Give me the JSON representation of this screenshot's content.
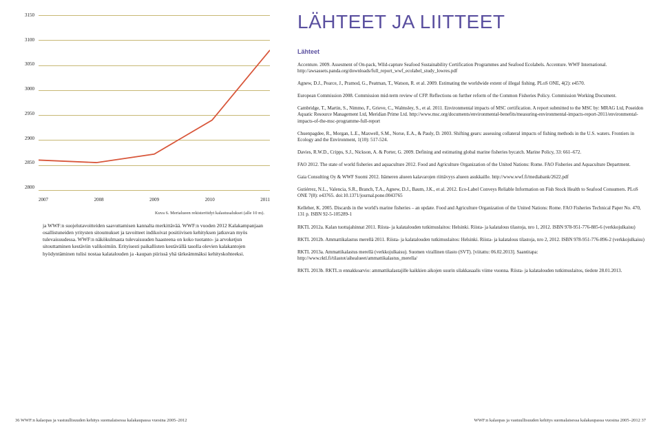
{
  "headline": "LÄHTEET JA LIITTEET",
  "subhead": "Lähteet",
  "chart": {
    "type": "line",
    "ylim": [
      2800,
      3150
    ],
    "ytick_step": 50,
    "yticks": [
      "3150",
      "3100",
      "3050",
      "3000",
      "2950",
      "2900",
      "2850",
      "2800"
    ],
    "xticks": [
      "2007",
      "2008",
      "2009",
      "2010",
      "2011"
    ],
    "values": [
      2860,
      2855,
      2872,
      2940,
      3080
    ],
    "line_color": "#d8563a",
    "line_width": 1.8,
    "grid_color": "#c7b773",
    "background_color": "#ffffff"
  },
  "caption": "Kuva 6. Merialueen rekisteröidyt kalastusalukset (alle 10 m).",
  "body_paragraph": "ja WWF:n suojelutavoitteiden saavuttamisen kannalta merkittävää. WWF:n vuoden 2012 Kalakampanjaan osallistuneiden yritysten sitoumukset ja tavoitteet indikoivat positiivisen kehityksen jatkuvan myös tulevaisuudessa. WWF:n näkökulmasta tulevaisuuden haasteena on koko tuotanto- ja arvoketjun sitouttaminen kestäviin valikoimiin. Erityisesti paikallisten kestävällä tasolla olevien kalakantojen hyödyntäminen tulisi nostaa kalatalouden ja -kaupan piirissä yhä tärkeämmäksi kehityskohteeksi.",
  "references": [
    "Accenture. 2009. Assesment of On-pack, Wild-capture Seafood Sustainability Certification Programmes and Seafood Ecolabels. Accenture. WWF International. http://awsassets.panda.org/downloads/full_report_wwf_ecolabel_study_lowres.pdf",
    "Agnew, D.J., Pearce, J., Pramod, G., Peatman, T., Watson, R. et al. 2009. Estimating the worldwide extent of illegal fishing. PLoS ONE, 4(2): e4570.",
    "European Commission 2008. Commission mid-term review of CFP. Reflections on further reform of the Common Fisheries Policy. Commission Working Document.",
    "Cambridge, T., Martin, S., Nimmo, F., Grieve, C., Walmsley, S., et al. 2011. Environmental impacts of MSC certification. A report submitted to the MSC by: MRAG Ltd, Poseidon Aquatic Resource Management Ltd, Meridian Prime Ltd. http://www.msc.org/documents/environmental-benefits/measuring-environmental-impacts-report-2011/environmental-impacts-of-the-msc-programme-full-report",
    "Chuenpagdee, R., Morgan, L.E., Maxwell, S.M., Norse, E.A., & Pauly, D. 2003. Shifting gears: assessing collateral impacts of fishing methods in the U.S. waters. Frontiers in Ecology and the Environment, 1(10): 517-524.",
    "Davies, R.W.D., Cripps, S.J., Nickson, A. & Porter, G. 2009. Defining and estimating global marine fisheries bycatch. Marine Policy, 33: 661–672.",
    "FAO 2012. The state of world fisheries and aquaculture 2012. Food and Agriculture Organization of the United Nations: Rome. FAO Fisheries and Aquaculture Department.",
    "Gaia Consulting Oy & WWF Suomi 2012. Itämeren alueen kalavarojen riittävyys alueen asukkaille. http://www.wwf.fi/mediabank/2622.pdf",
    "Gutiérrez, N.L., Valencia, S.R., Branch, T.A., Agnew, D.J., Baum, J.K., et al. 2012. Eco-Label Conveys Reliable Information on Fish Stock Health to Seafood Consumers. PLoS ONE 7(8): e43765. doi:10.1371/journal.pone.0043765",
    "Kelleher, K. 2005. Discards in the world's marine fisheries – an update. Food and Agriculture Organization of the United Nations: Rome. FAO Fisheries Technical Paper No. 470, 131 p. ISBN 92-5-105289-1",
    "RKTL 2012a. Kalan tuottajahinnat 2011. Riista- ja kalatalouden tutkimuslaitos: Helsinki. Riista- ja kalatalous tilastoja, nro 1, 2012. ISBN 978-951-776-885-6 (verkkojulkaisu)",
    "RKTL 2012b. Ammattikalastus merellä 2011. Riista- ja kalatalouden tutkimuslaitos: Helsinki. Riista- ja kalatalous tilastoja, nro 2, 2012. ISBN 978-951-776-896-2 (verkkojulkaisu)",
    "RKTL 2013a. Ammattikalastus merellä (verkkojulkaisu). Suomen virallinen tilasto (SVT). [viitattu: 06.02.2013]. Saantitapa: http://www.rktl.fi/tilastot/aihealueet/ammattikalastus_merella/",
    "RKTL 2013b. RKTL:n ennakkoarvio: ammattikalastajille kaikkien aikojen suurin silakkasaalis viime vuonna. Riista- ja kalatalouden tutkimuslaitos, tiedote 28.01.2013."
  ],
  "footer_left": "36   WWF:n kalaopas ja vastuullisuuden kehitys suomalaisessa kalakaupassa vuosina 2005–2012",
  "footer_right": "WWF:n kalaopas ja vastuullisuuden kehitys suomalaisessa kalakaupassa vuosina 2005–2012   37"
}
